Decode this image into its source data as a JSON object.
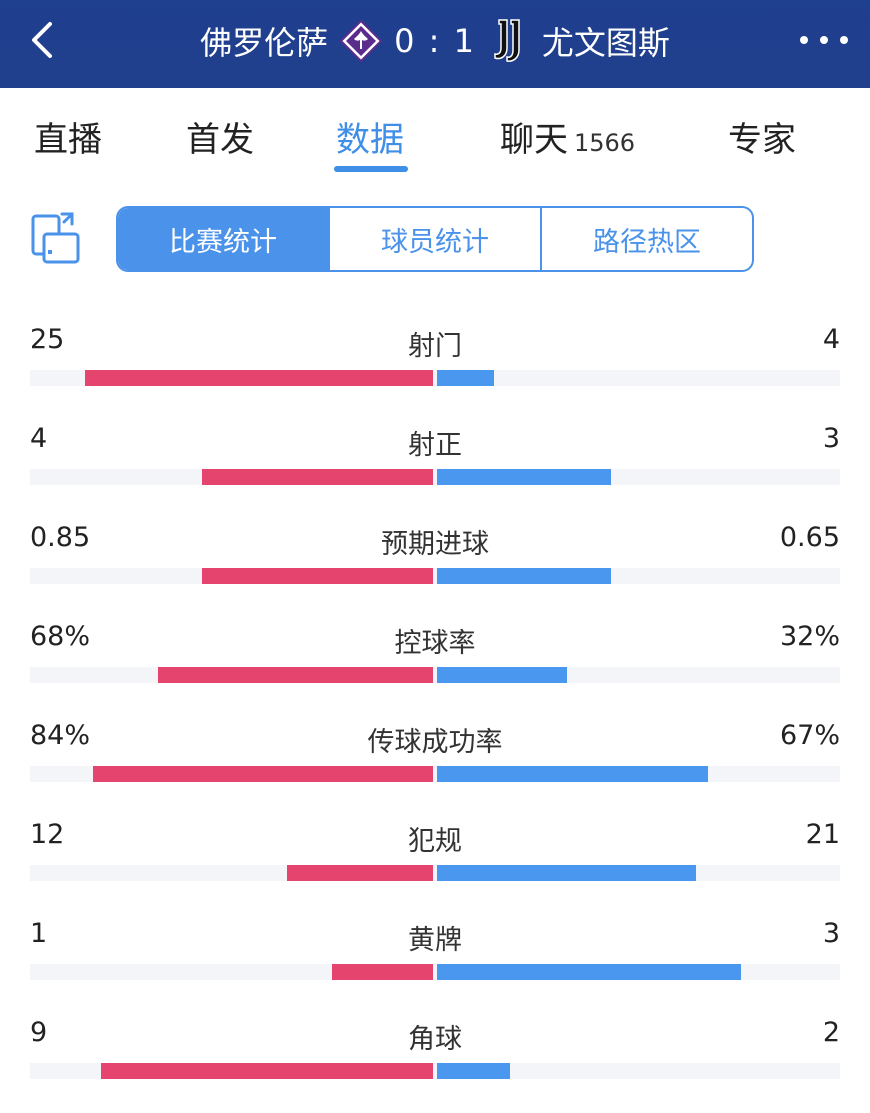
{
  "header": {
    "home_team": "佛罗伦萨",
    "away_team": "尤文图斯",
    "score": "0 : 1",
    "home_badge_icon": "fiorentina-lily-icon",
    "away_badge_icon": "juventus-j-icon",
    "bg_color": "#203f8c"
  },
  "tabs": [
    {
      "label": "直播"
    },
    {
      "label": "首发"
    },
    {
      "label": "数据",
      "active": true
    },
    {
      "label": "聊天",
      "count": "1566"
    },
    {
      "label": "专家"
    }
  ],
  "segments": [
    {
      "label": "比赛统计",
      "active": true
    },
    {
      "label": "球员统计"
    },
    {
      "label": "路径热区"
    }
  ],
  "colors": {
    "accent": "#3f8ee8",
    "home_bar": "#e5446f",
    "away_bar": "#4a97ef"
  },
  "stats": [
    {
      "label": "射门",
      "home": "25",
      "away": "4",
      "home_frac": 0.86,
      "away_frac": 0.14
    },
    {
      "label": "射正",
      "home": "4",
      "away": "3",
      "home_frac": 0.57,
      "away_frac": 0.43
    },
    {
      "label": "预期进球",
      "home": "0.85",
      "away": "0.65",
      "home_frac": 0.57,
      "away_frac": 0.43
    },
    {
      "label": "控球率",
      "home": "68%",
      "away": "32%",
      "home_frac": 0.68,
      "away_frac": 0.32
    },
    {
      "label": "传球成功率",
      "home": "84%",
      "away": "67%",
      "home_frac": 0.84,
      "away_frac": 0.67
    },
    {
      "label": "犯规",
      "home": "12",
      "away": "21",
      "home_frac": 0.36,
      "away_frac": 0.64
    },
    {
      "label": "黄牌",
      "home": "1",
      "away": "3",
      "home_frac": 0.25,
      "away_frac": 0.75
    },
    {
      "label": "角球",
      "home": "9",
      "away": "2",
      "home_frac": 0.82,
      "away_frac": 0.18
    }
  ]
}
